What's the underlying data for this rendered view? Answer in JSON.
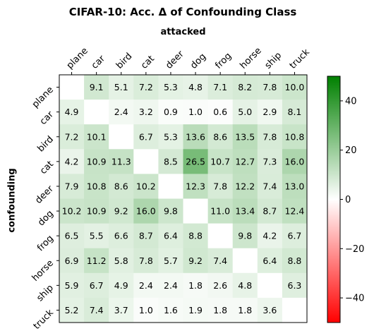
{
  "chart_data": {
    "type": "heatmap",
    "title": "CIFAR-10: Acc. Δ of Confounding Class",
    "xlabel": "attacked",
    "ylabel": "confounding",
    "x_categories": [
      "plane",
      "car",
      "bird",
      "cat",
      "deer",
      "dog",
      "frog",
      "horse",
      "ship",
      "truck"
    ],
    "y_categories": [
      "plane",
      "car",
      "bird",
      "cat",
      "deer",
      "dog",
      "frog",
      "horse",
      "ship",
      "truck"
    ],
    "values": [
      [
        null,
        9.1,
        5.1,
        7.2,
        5.3,
        4.8,
        7.1,
        8.2,
        7.8,
        10.0
      ],
      [
        4.9,
        null,
        2.4,
        3.2,
        0.9,
        1.0,
        0.6,
        5.0,
        2.9,
        8.1
      ],
      [
        7.2,
        10.1,
        null,
        6.7,
        5.3,
        13.6,
        8.6,
        13.5,
        7.8,
        10.8
      ],
      [
        4.2,
        10.9,
        11.3,
        null,
        8.5,
        26.5,
        10.7,
        12.7,
        7.3,
        16.0
      ],
      [
        7.9,
        10.8,
        8.6,
        10.2,
        null,
        12.3,
        7.8,
        12.2,
        7.4,
        13.0
      ],
      [
        10.2,
        10.9,
        9.2,
        16.0,
        9.8,
        null,
        11.0,
        13.4,
        8.7,
        12.4
      ],
      [
        6.5,
        5.5,
        6.6,
        8.7,
        6.4,
        8.8,
        null,
        9.8,
        4.2,
        6.7
      ],
      [
        6.9,
        11.2,
        5.8,
        7.8,
        5.7,
        9.2,
        7.4,
        null,
        6.4,
        8.8
      ],
      [
        5.9,
        6.7,
        4.9,
        2.4,
        2.4,
        1.8,
        2.6,
        4.8,
        null,
        6.3
      ],
      [
        5.2,
        7.4,
        3.7,
        1.0,
        1.6,
        1.9,
        1.8,
        1.8,
        3.6,
        null
      ]
    ],
    "color_scale": {
      "min": -50,
      "max": 50,
      "low_color": "#ff0000",
      "mid_color": "#ffffff",
      "high_color": "#008000"
    },
    "colorbar_ticks": [
      40,
      20,
      0,
      -20,
      -40
    ],
    "grid": false,
    "legend": "colorbar right"
  }
}
